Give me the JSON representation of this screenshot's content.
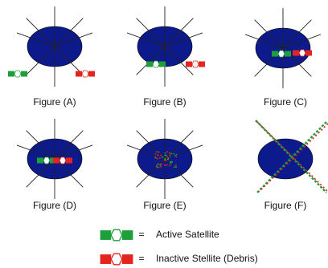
{
  "figures": [
    {
      "caption": "Figure (A)"
    },
    {
      "caption": "Figure (B)"
    },
    {
      "caption": "Figure (C)"
    },
    {
      "caption": "Figure (D)"
    },
    {
      "caption": "Figure (E)"
    },
    {
      "caption": "Figure (F)"
    }
  ],
  "legend": [
    {
      "equals": "=",
      "label": "Active Satellite"
    },
    {
      "equals": "=",
      "label": "Inactive Stellite (Debris)"
    }
  ]
}
